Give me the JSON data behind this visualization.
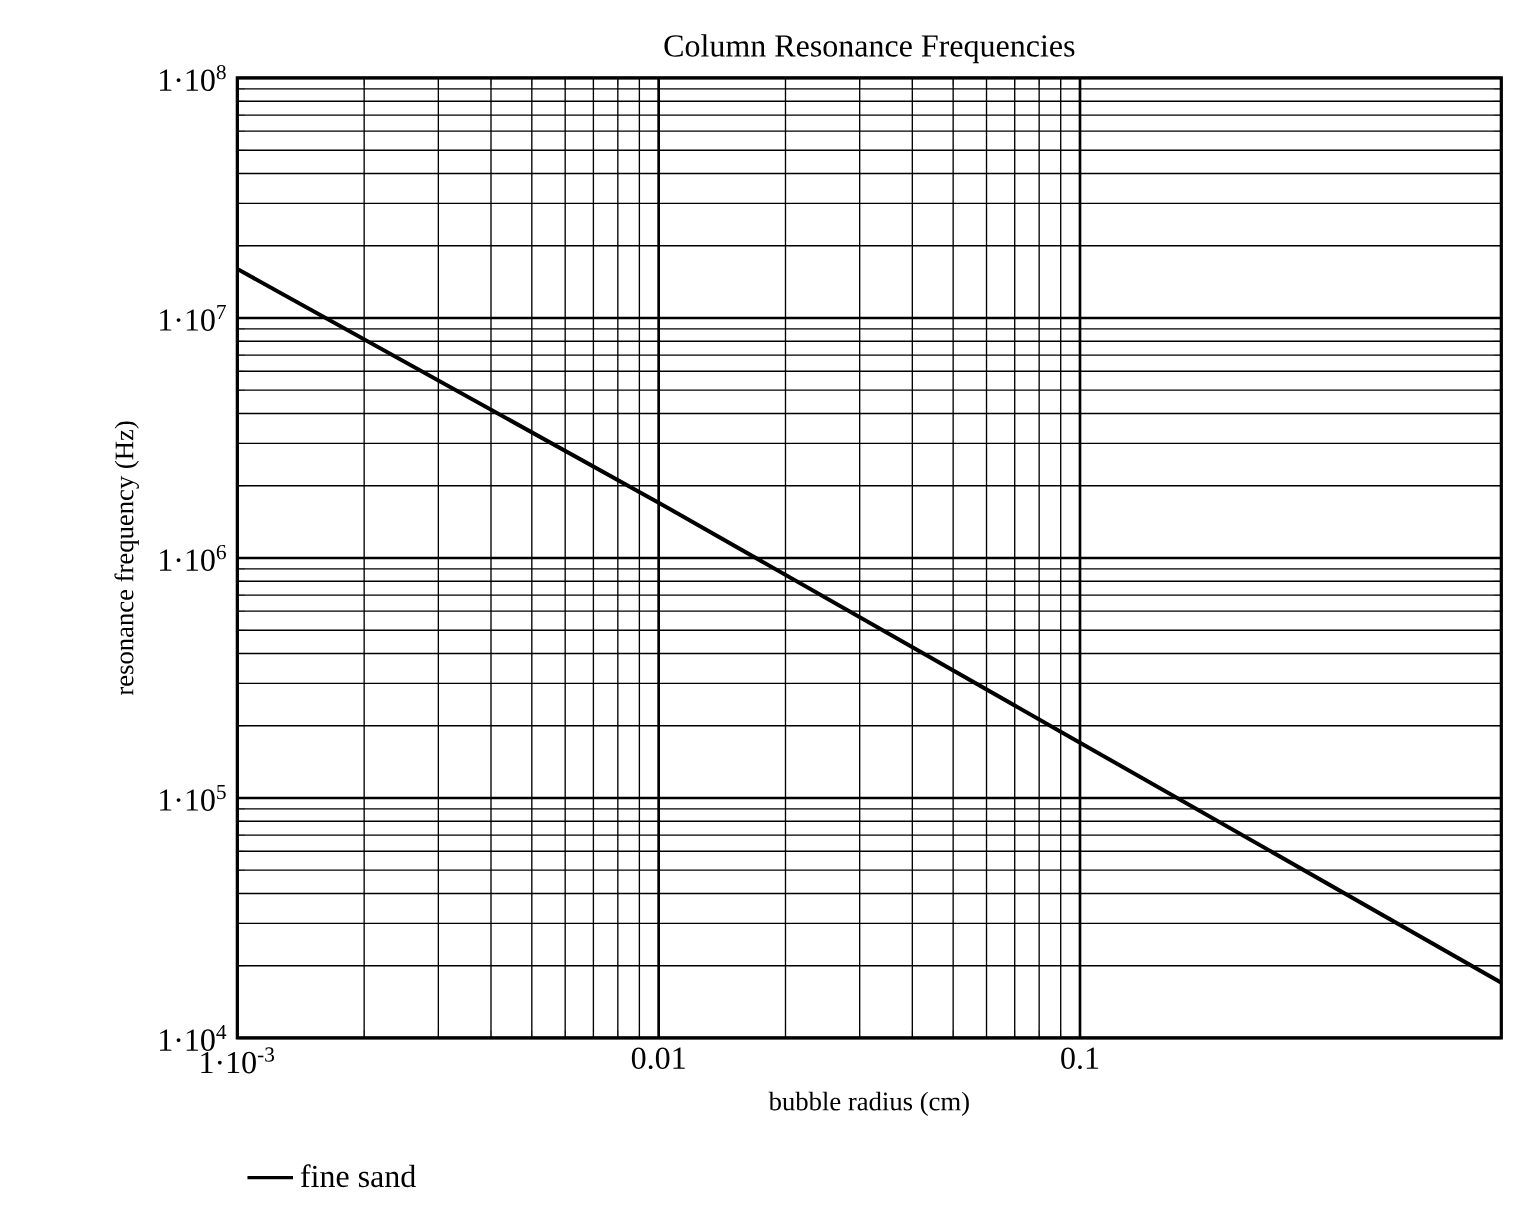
{
  "chart_data": {
    "type": "line",
    "title": "Column Resonance Frequencies",
    "xlabel": "bubble radius (cm)",
    "ylabel": "resonance frequency (Hz)",
    "log": "xy",
    "grid": true,
    "legend": "bottom left",
    "line_style": "solid",
    "xlim": [
      0.001,
      1
    ],
    "ylim": [
      10000,
      100000000
    ],
    "xticks": [
      {
        "value": 0.001,
        "label": "1·10$^{-3}$"
      },
      0.01,
      0.1
    ],
    "yticks": [
      {
        "value": 10000,
        "label": "1·10$^{4}$"
      },
      {
        "value": 100000,
        "label": "1·10$^{5}$"
      },
      {
        "value": 1000000,
        "label": "1·10$^{6}$"
      },
      {
        "value": 10000000,
        "label": "1·10$^{7}$"
      },
      {
        "value": 100000000,
        "label": "1·10$^{8}$"
      }
    ],
    "series": [
      {
        "name": "fine sand",
        "color": "#000000",
        "x": [
          0.001,
          0.01,
          0.1,
          1
        ],
        "values": [
          16000000,
          1700000,
          170000,
          17000
        ]
      }
    ]
  }
}
